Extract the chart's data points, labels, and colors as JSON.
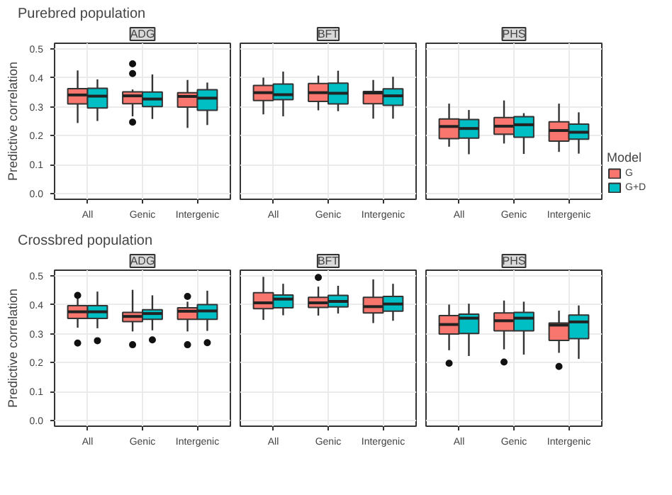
{
  "chart_data": [
    {
      "type": "box",
      "title": "ADG",
      "annotations": [
        "Purebred population"
      ],
      "ylabel": "Predictive correlation",
      "categories": [
        "All",
        "Genic",
        "Intergenic"
      ],
      "ylim": [
        -0.02,
        0.52
      ],
      "yticks": [
        {
          "value": 0,
          "label": "0.0"
        },
        {
          "value": 0.1,
          "label": "0.1"
        },
        {
          "value": 0.2,
          "label": "0.2"
        },
        {
          "value": 0.3,
          "label": "0.3"
        },
        {
          "value": 0.4,
          "label": "0.4"
        },
        {
          "value": 0.5,
          "label": "0.5"
        }
      ],
      "grid": true,
      "series": [
        {
          "color": "#f8766d",
          "boxes": [
            {
              "low": 0.244,
              "q1": 0.31,
              "median": 0.341,
              "q3": 0.363,
              "high": 0.426
            },
            {
              "low": 0.267,
              "q1": 0.311,
              "median": 0.338,
              "q3": 0.352,
              "high": 0.36,
              "outliers": [
                0.449,
                0.415,
                0.247
              ]
            },
            {
              "low": 0.227,
              "q1": 0.299,
              "median": 0.336,
              "q3": 0.349,
              "high": 0.393
            }
          ]
        },
        {
          "color": "#00bfc4",
          "boxes": [
            {
              "low": 0.251,
              "q1": 0.296,
              "median": 0.337,
              "q3": 0.364,
              "high": 0.395
            },
            {
              "low": 0.258,
              "q1": 0.301,
              "median": 0.327,
              "q3": 0.351,
              "high": 0.412
            },
            {
              "low": 0.237,
              "q1": 0.288,
              "median": 0.33,
              "q3": 0.359,
              "high": 0.384
            }
          ]
        }
      ]
    },
    {
      "type": "box",
      "title": "BFT",
      "categories": [
        "All",
        "Genic",
        "Intergenic"
      ],
      "ylim": [
        -0.02,
        0.52
      ],
      "yticks": [
        0,
        0.1,
        0.2,
        0.3,
        0.4,
        0.5
      ],
      "grid": true,
      "tick_labels": "x",
      "series": [
        {
          "color": "#f8766d",
          "boxes": [
            {
              "low": 0.274,
              "q1": 0.322,
              "median": 0.349,
              "q3": 0.374,
              "high": 0.401
            },
            {
              "low": 0.288,
              "q1": 0.319,
              "median": 0.349,
              "q3": 0.381,
              "high": 0.408
            },
            {
              "low": 0.259,
              "q1": 0.311,
              "median": 0.348,
              "q3": 0.353,
              "high": 0.393
            }
          ]
        },
        {
          "color": "#00bfc4",
          "boxes": [
            {
              "low": 0.267,
              "q1": 0.325,
              "median": 0.342,
              "q3": 0.379,
              "high": 0.422
            },
            {
              "low": 0.285,
              "q1": 0.31,
              "median": 0.347,
              "q3": 0.382,
              "high": 0.425
            },
            {
              "low": 0.259,
              "q1": 0.305,
              "median": 0.338,
              "q3": 0.362,
              "high": 0.404
            }
          ]
        }
      ]
    },
    {
      "type": "box",
      "title": "PHS",
      "categories": [
        "All",
        "Genic",
        "Intergenic"
      ],
      "ylim": [
        -0.02,
        0.52
      ],
      "yticks": [
        0,
        0.1,
        0.2,
        0.3,
        0.4,
        0.5
      ],
      "grid": true,
      "tick_labels": "x",
      "legend": "right",
      "legend_title": "Model",
      "series": [
        {
          "name": "G",
          "color": "#f8766d",
          "boxes": [
            {
              "low": 0.162,
              "q1": 0.19,
              "median": 0.232,
              "q3": 0.258,
              "high": 0.311
            },
            {
              "low": 0.173,
              "q1": 0.205,
              "median": 0.233,
              "q3": 0.263,
              "high": 0.322
            },
            {
              "low": 0.144,
              "q1": 0.181,
              "median": 0.218,
              "q3": 0.248,
              "high": 0.311
            }
          ]
        },
        {
          "name": "G+D",
          "color": "#00bfc4",
          "boxes": [
            {
              "low": 0.136,
              "q1": 0.192,
              "median": 0.225,
              "q3": 0.256,
              "high": 0.289
            },
            {
              "low": 0.137,
              "q1": 0.195,
              "median": 0.238,
              "q3": 0.266,
              "high": 0.278
            },
            {
              "low": 0.138,
              "q1": 0.188,
              "median": 0.212,
              "q3": 0.24,
              "high": 0.281
            }
          ]
        }
      ]
    },
    {
      "type": "box",
      "title": "ADG",
      "annotations": [
        "Crossbred population"
      ],
      "ylabel": "Predictive correlation",
      "categories": [
        "All",
        "Genic",
        "Intergenic"
      ],
      "ylim": [
        -0.02,
        0.52
      ],
      "yticks": [
        {
          "value": 0,
          "label": "0.0"
        },
        {
          "value": 0.1,
          "label": "0.1"
        },
        {
          "value": 0.2,
          "label": "0.2"
        },
        {
          "value": 0.3,
          "label": "0.3"
        },
        {
          "value": 0.4,
          "label": "0.4"
        },
        {
          "value": 0.5,
          "label": "0.5"
        }
      ],
      "grid": true,
      "series": [
        {
          "color": "#f8766d",
          "boxes": [
            {
              "low": 0.321,
              "q1": 0.353,
              "median": 0.376,
              "q3": 0.397,
              "high": 0.422,
              "outliers": [
                0.433,
                0.268
              ]
            },
            {
              "low": 0.308,
              "q1": 0.342,
              "median": 0.36,
              "q3": 0.374,
              "high": 0.452,
              "outliers": [
                0.262
              ]
            },
            {
              "low": 0.308,
              "q1": 0.35,
              "median": 0.378,
              "q3": 0.39,
              "high": 0.411,
              "outliers": [
                0.429,
                0.262
              ]
            }
          ]
        },
        {
          "color": "#00bfc4",
          "boxes": [
            {
              "low": 0.319,
              "q1": 0.353,
              "median": 0.376,
              "q3": 0.397,
              "high": 0.446,
              "outliers": [
                0.276
              ]
            },
            {
              "low": 0.312,
              "q1": 0.35,
              "median": 0.37,
              "q3": 0.383,
              "high": 0.433,
              "outliers": [
                0.279
              ]
            },
            {
              "low": 0.31,
              "q1": 0.35,
              "median": 0.379,
              "q3": 0.401,
              "high": 0.449,
              "outliers": [
                0.269
              ]
            }
          ]
        }
      ]
    },
    {
      "type": "box",
      "title": "BFT",
      "categories": [
        "All",
        "Genic",
        "Intergenic"
      ],
      "ylim": [
        -0.02,
        0.52
      ],
      "yticks": [
        0,
        0.1,
        0.2,
        0.3,
        0.4,
        0.5
      ],
      "grid": true,
      "tick_labels": "x",
      "series": [
        {
          "color": "#f8766d",
          "boxes": [
            {
              "low": 0.348,
              "q1": 0.387,
              "median": 0.407,
              "q3": 0.442,
              "high": 0.497
            },
            {
              "low": 0.363,
              "q1": 0.391,
              "median": 0.407,
              "q3": 0.426,
              "high": 0.463,
              "outliers": [
                0.495
              ]
            },
            {
              "low": 0.337,
              "q1": 0.372,
              "median": 0.394,
              "q3": 0.426,
              "high": 0.488
            }
          ]
        },
        {
          "color": "#00bfc4",
          "boxes": [
            {
              "low": 0.364,
              "q1": 0.39,
              "median": 0.42,
              "q3": 0.434,
              "high": 0.473
            },
            {
              "low": 0.37,
              "q1": 0.393,
              "median": 0.412,
              "q3": 0.433,
              "high": 0.466
            },
            {
              "low": 0.345,
              "q1": 0.378,
              "median": 0.403,
              "q3": 0.429,
              "high": 0.473
            }
          ]
        }
      ]
    },
    {
      "type": "box",
      "title": "PHS",
      "categories": [
        "All",
        "Genic",
        "Intergenic"
      ],
      "ylim": [
        -0.02,
        0.52
      ],
      "yticks": [
        0,
        0.1,
        0.2,
        0.3,
        0.4,
        0.5
      ],
      "grid": true,
      "tick_labels": "x",
      "series": [
        {
          "color": "#f8766d",
          "boxes": [
            {
              "low": 0.243,
              "q1": 0.299,
              "median": 0.332,
              "q3": 0.363,
              "high": 0.401,
              "outliers": [
                0.198
              ]
            },
            {
              "low": 0.246,
              "q1": 0.31,
              "median": 0.345,
              "q3": 0.372,
              "high": 0.415,
              "outliers": [
                0.202
              ]
            },
            {
              "low": 0.234,
              "q1": 0.277,
              "median": 0.33,
              "q3": 0.337,
              "high": 0.38,
              "outliers": [
                0.187
              ]
            }
          ]
        },
        {
          "color": "#00bfc4",
          "boxes": [
            {
              "low": 0.223,
              "q1": 0.301,
              "median": 0.354,
              "q3": 0.368,
              "high": 0.404
            },
            {
              "low": 0.228,
              "q1": 0.31,
              "median": 0.354,
              "q3": 0.374,
              "high": 0.411
            },
            {
              "low": 0.213,
              "q1": 0.283,
              "median": 0.341,
              "q3": 0.365,
              "high": 0.398
            }
          ]
        }
      ]
    }
  ]
}
